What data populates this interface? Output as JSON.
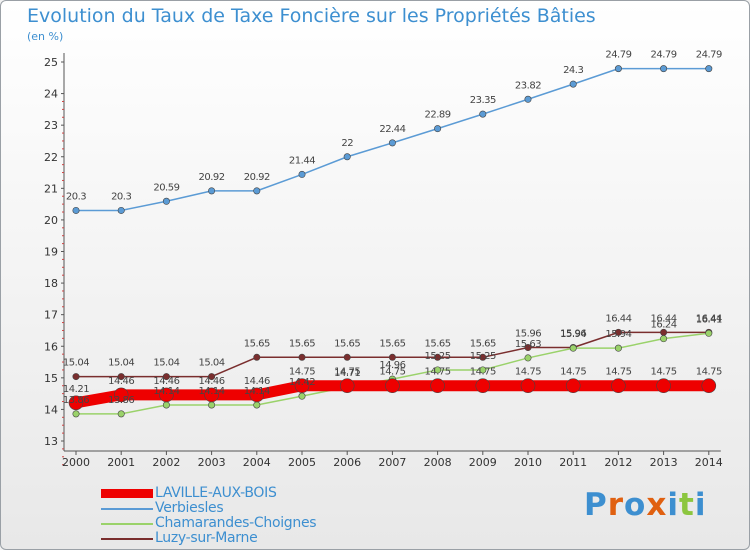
{
  "title": "Evolution du Taux de Taxe Foncière sur les Propriétés Bâties",
  "unit": "(en %)",
  "logo": {
    "text": "Proxiti",
    "colors": [
      "#3d8fd0",
      "#e06010",
      "#3d8fd0",
      "#e06010",
      "#3d8fd0",
      "#8cc63f",
      "#3d8fd0"
    ]
  },
  "chart_data": {
    "type": "line",
    "categories": [
      "2000",
      "2001",
      "2002",
      "2003",
      "2004",
      "2005",
      "2006",
      "2007",
      "2008",
      "2009",
      "2010",
      "2011",
      "2012",
      "2013",
      "2014"
    ],
    "y_ticks": [
      13,
      14,
      15,
      16,
      17,
      18,
      19,
      20,
      21,
      22,
      23,
      24,
      25
    ],
    "ylim": [
      13,
      25
    ],
    "grid": "none",
    "legend_position": "bottom-left",
    "series": [
      {
        "name": "Verbiesles",
        "color": "#5b9bd5",
        "values": [
          20.3,
          20.3,
          20.59,
          20.92,
          20.92,
          21.44,
          22,
          22.44,
          22.89,
          23.35,
          23.82,
          24.3,
          24.79,
          24.79,
          24.79
        ],
        "labels": [
          "20.3",
          "20.3",
          "20.59",
          "20.92",
          "20.92",
          "21.44",
          "22",
          "22.44",
          "22.89",
          "23.35",
          "23.82",
          "24.3",
          "24.79",
          "24.79",
          "24.79"
        ]
      },
      {
        "name": "Luzy-sur-Marne",
        "color": "#7a2e2e",
        "values": [
          15.04,
          15.04,
          15.04,
          15.04,
          15.65,
          15.65,
          15.65,
          15.65,
          15.65,
          15.65,
          15.96,
          15.96,
          16.44,
          16.44,
          16.44
        ],
        "labels": [
          "15.04",
          "15.04",
          "15.04",
          "15.04",
          "15.65",
          "15.65",
          "15.65",
          "15.65",
          "15.65",
          "15.65",
          "15.96",
          "15.96",
          "16.44",
          "16.44",
          "16.44"
        ]
      },
      {
        "name": "Chamarandes-Choignes",
        "color": "#9ad26a",
        "values": [
          13.86,
          13.86,
          14.14,
          14.14,
          14.14,
          14.42,
          14.71,
          14.96,
          15.25,
          15.25,
          15.63,
          15.94,
          15.94,
          16.24,
          16.41
        ],
        "labels": [
          "13.86",
          "13.86",
          "14.14",
          "14.14",
          "14.14",
          "14.42",
          "14.71",
          "14.96",
          "15.25",
          "15.25",
          "15.63",
          "15.94",
          "15.94",
          "16.24",
          "16.41"
        ]
      },
      {
        "name": "LAVILLE-AUX-BOIS",
        "color": "#ee0000",
        "values": [
          14.21,
          14.46,
          14.46,
          14.46,
          14.46,
          14.75,
          14.75,
          14.75,
          14.75,
          14.75,
          14.75,
          14.75,
          14.75,
          14.75,
          14.75
        ],
        "labels": [
          "14.21",
          "14.46",
          "14.46",
          "14.46",
          "14.46",
          "14.75",
          "14.75",
          "14.75",
          "14.75",
          "14.75",
          "14.75",
          "14.75",
          "14.75",
          "14.75",
          "14.75"
        ]
      }
    ]
  }
}
